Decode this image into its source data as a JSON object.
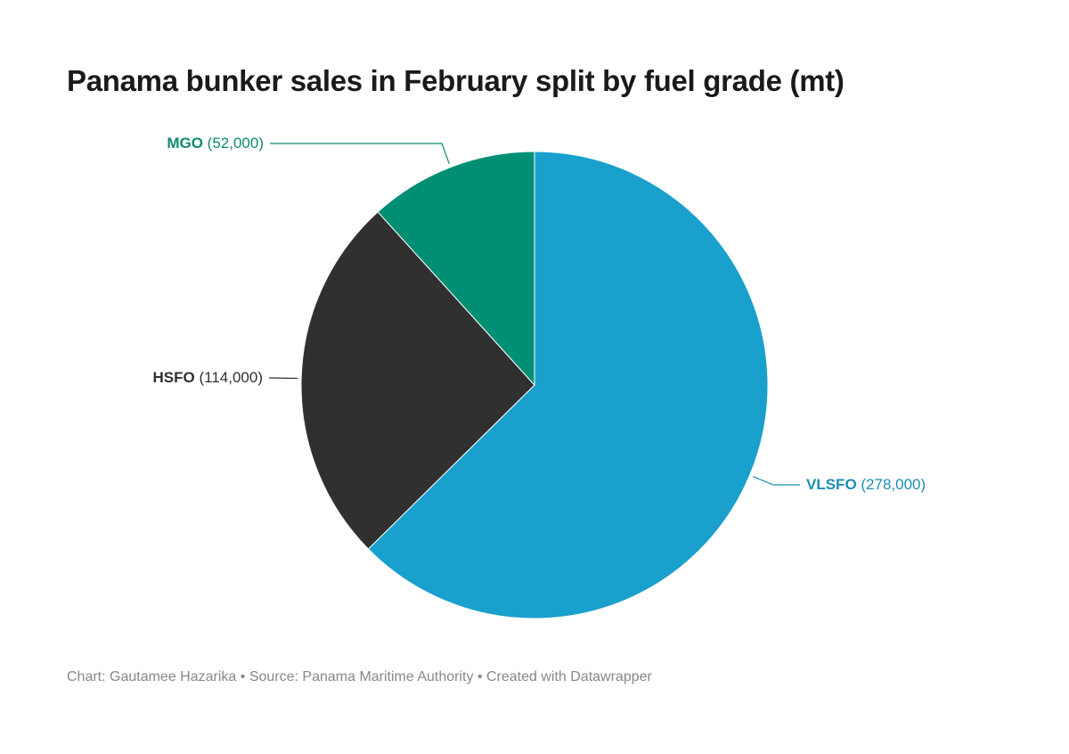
{
  "chart_data": {
    "type": "pie",
    "title": "Panama bunker sales in February split by fuel grade (mt)",
    "slices": [
      {
        "label": "VLSFO",
        "value": 278000,
        "value_label": "(278,000)",
        "color": "#19a0cc",
        "label_color": "#1b8db5"
      },
      {
        "label": "HSFO",
        "value": 114000,
        "value_label": "(114,000)",
        "color": "#303030",
        "label_color": "#303030"
      },
      {
        "label": "MGO",
        "value": 52000,
        "value_label": "(52,000)",
        "color": "#008f74",
        "label_color": "#0e8a70"
      }
    ],
    "footer": {
      "chart_by": "Chart: Gautamee Hazarika",
      "source": "Source: Panama Maritime Authority",
      "created_with": "Created with Datawrapper",
      "separator": " • "
    }
  }
}
